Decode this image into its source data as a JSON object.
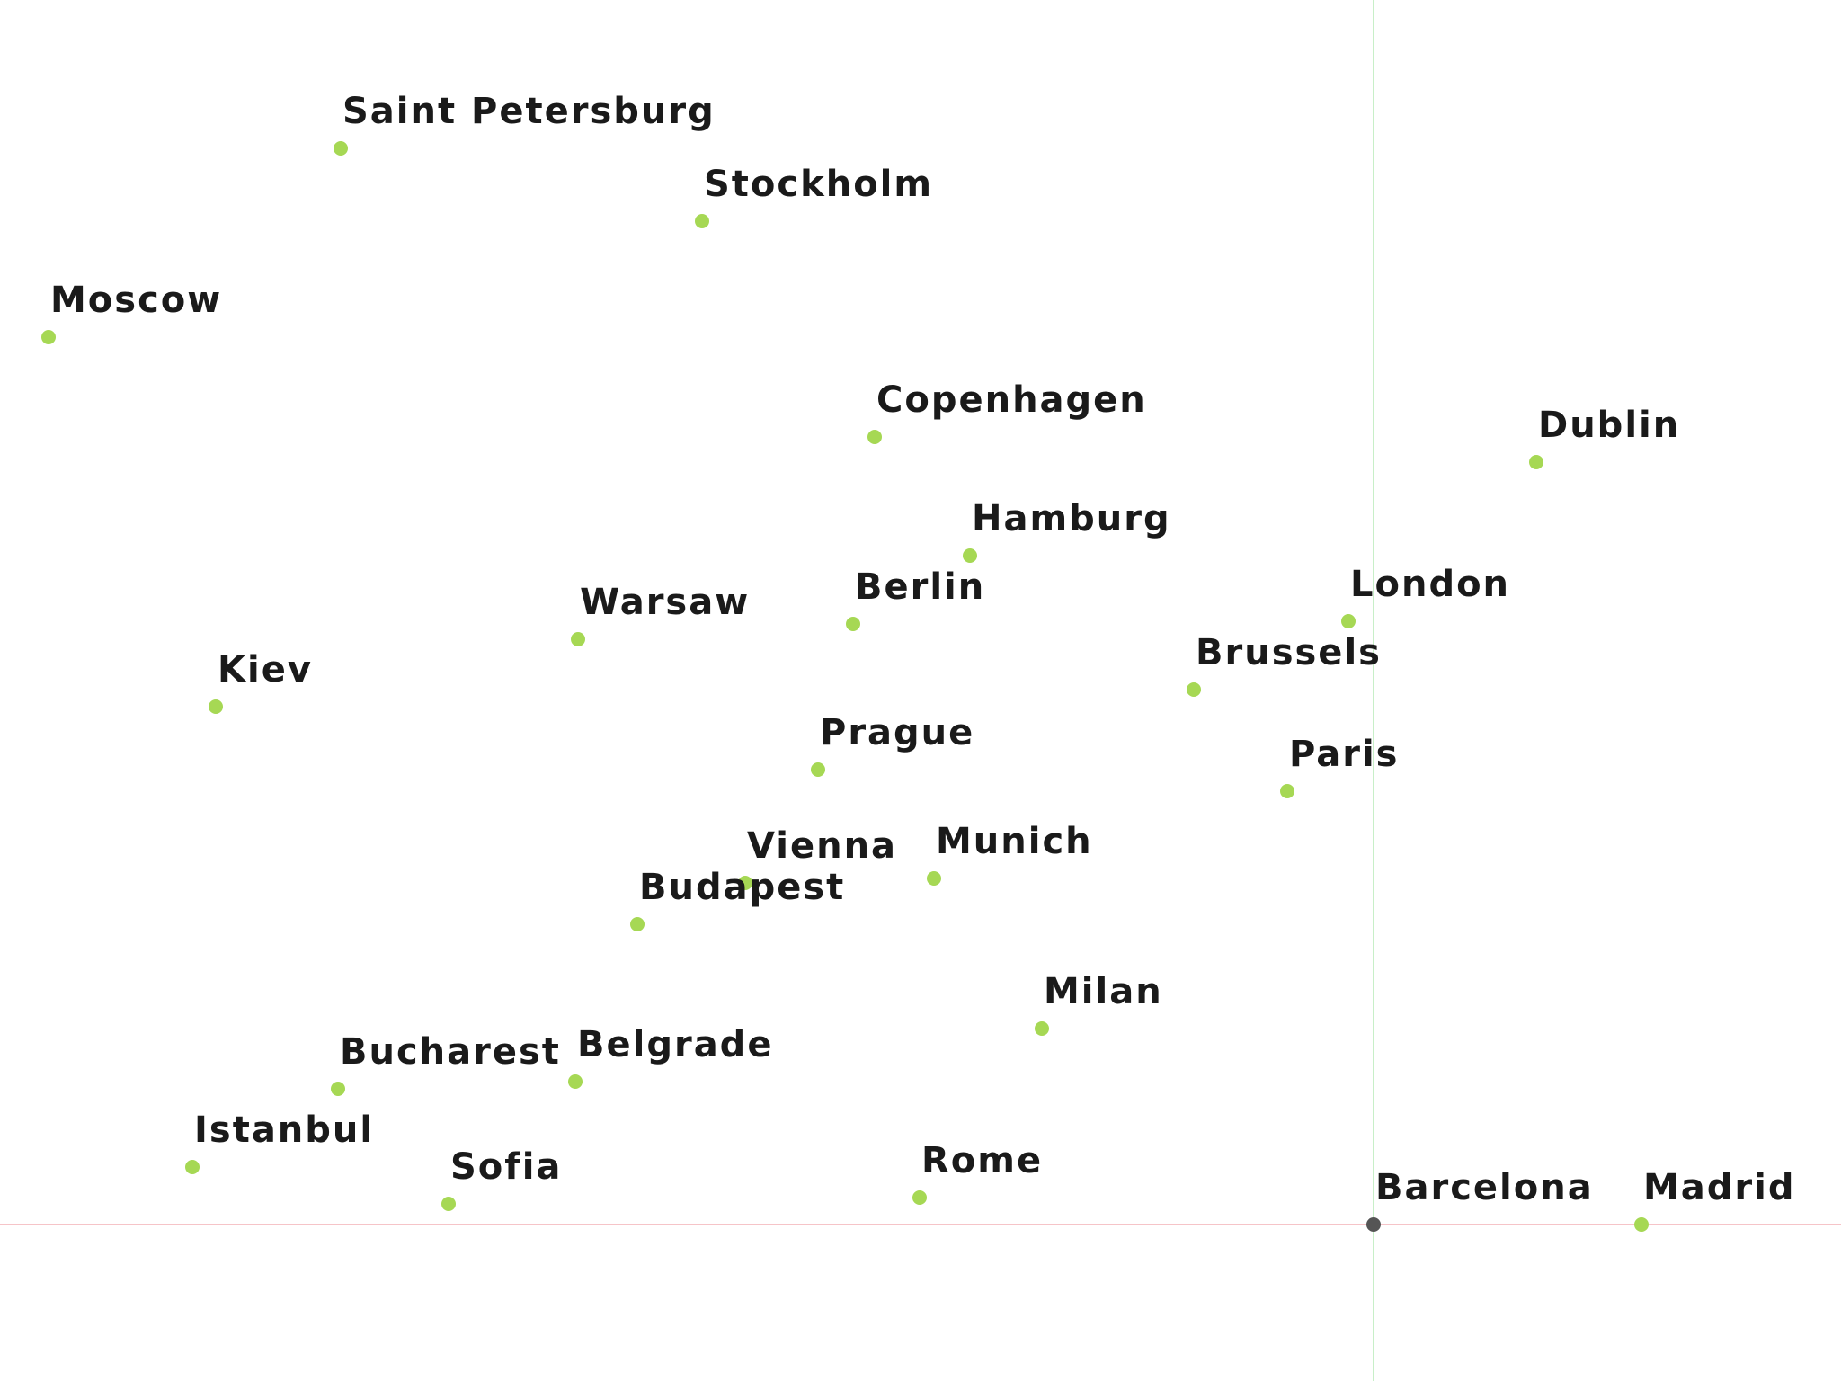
{
  "map": {
    "cities": [
      {
        "name": "Saint Petersburg",
        "selected": false
      },
      {
        "name": "Stockholm",
        "selected": false
      },
      {
        "name": "Moscow",
        "selected": false
      },
      {
        "name": "Copenhagen",
        "selected": false
      },
      {
        "name": "Dublin",
        "selected": false
      },
      {
        "name": "Hamburg",
        "selected": false
      },
      {
        "name": "London",
        "selected": false
      },
      {
        "name": "Berlin",
        "selected": false
      },
      {
        "name": "Warsaw",
        "selected": false
      },
      {
        "name": "Brussels",
        "selected": false
      },
      {
        "name": "Kiev",
        "selected": false
      },
      {
        "name": "Prague",
        "selected": false
      },
      {
        "name": "Paris",
        "selected": false
      },
      {
        "name": "Vienna",
        "selected": false
      },
      {
        "name": "Munich",
        "selected": false
      },
      {
        "name": "Budapest",
        "selected": false
      },
      {
        "name": "Milan",
        "selected": false
      },
      {
        "name": "Bucharest",
        "selected": false
      },
      {
        "name": "Belgrade",
        "selected": false
      },
      {
        "name": "Istanbul",
        "selected": false
      },
      {
        "name": "Sofia",
        "selected": false
      },
      {
        "name": "Rome",
        "selected": false
      },
      {
        "name": "Barcelona",
        "selected": true
      },
      {
        "name": "Madrid",
        "selected": false
      }
    ],
    "colors": {
      "point": "#a6d854",
      "selected_point": "#555555",
      "vertical_guide": "#c8efc8",
      "horizontal_guide": "#f6c4c8"
    }
  }
}
